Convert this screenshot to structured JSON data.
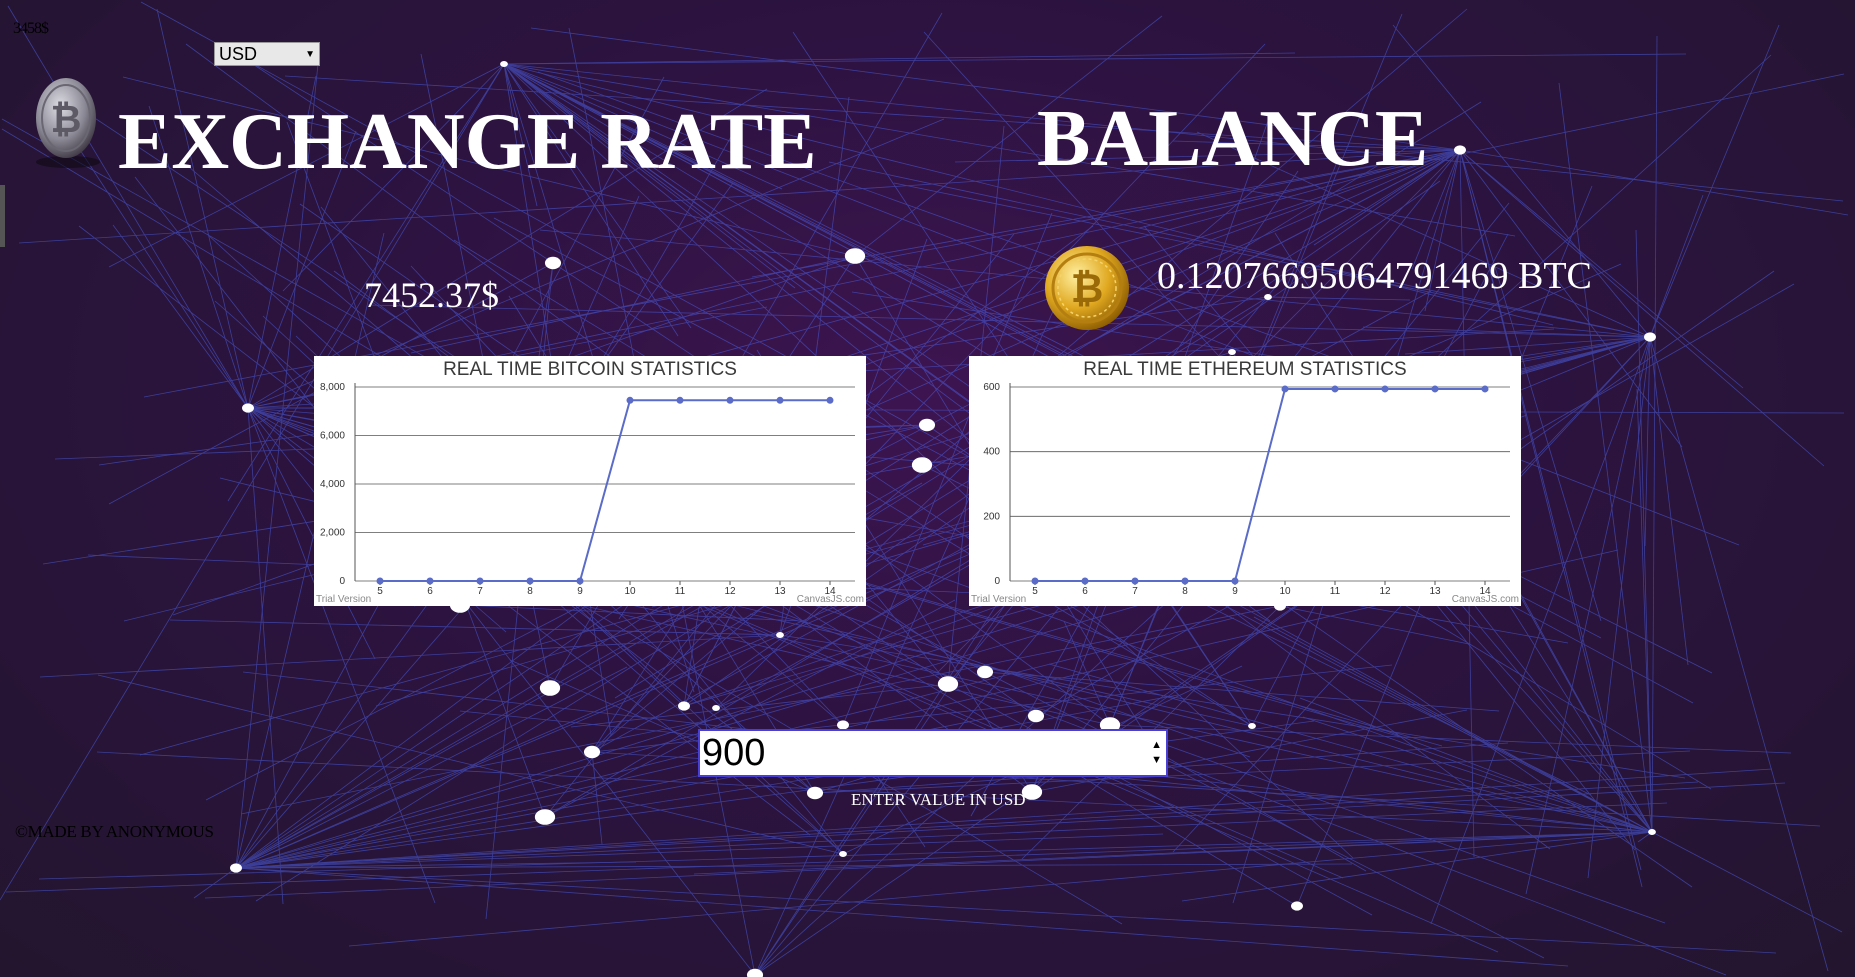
{
  "top_value": "3458$",
  "currency": {
    "selected": "USD"
  },
  "icons": {
    "logo": "bitcoin-logo-icon",
    "coin": "bitcoin-coin-icon",
    "dropdown": "dropdown-arrow-icon",
    "spinner": "spinner-arrows-icon"
  },
  "exchange": {
    "title": "EXCHANGE RATE",
    "value": "7452.37$"
  },
  "balance": {
    "title": "BALANCE",
    "value": "0.12076695064791469 BTC"
  },
  "input": {
    "value": "900",
    "caption": "ENTER VALUE IN USD"
  },
  "footer": "©MADE BY ANONYMOUS",
  "colors": {
    "line": "#5a6bc8",
    "accent_border": "#4a3fd4"
  },
  "chart_data": [
    {
      "type": "line",
      "title": "REAL TIME BITCOIN STATISTICS",
      "x": [
        5,
        6,
        7,
        8,
        9,
        10,
        11,
        12,
        13,
        14
      ],
      "series": [
        {
          "values": [
            0,
            0,
            0,
            0,
            0,
            7452,
            7452,
            7452,
            7452,
            7452
          ]
        }
      ],
      "yticks": [
        "0",
        "2,000",
        "4,000",
        "6,000",
        "8,000"
      ],
      "ylim": [
        0,
        8000
      ],
      "xlim": [
        4.5,
        14.5
      ],
      "grid": true,
      "watermark_left": "Trial Version",
      "watermark_right": "CanvasJS.com"
    },
    {
      "type": "line",
      "title": "REAL TIME ETHEREUM STATISTICS",
      "x": [
        5,
        6,
        7,
        8,
        9,
        10,
        11,
        12,
        13,
        14
      ],
      "series": [
        {
          "values": [
            0,
            0,
            0,
            0,
            0,
            594,
            594,
            594,
            594,
            594
          ]
        }
      ],
      "yticks": [
        "0",
        "200",
        "400",
        "600"
      ],
      "ylim": [
        0,
        600
      ],
      "xlim": [
        4.5,
        14.5
      ],
      "grid": true,
      "watermark_left": "Trial Version",
      "watermark_right": "CanvasJS.com"
    }
  ]
}
